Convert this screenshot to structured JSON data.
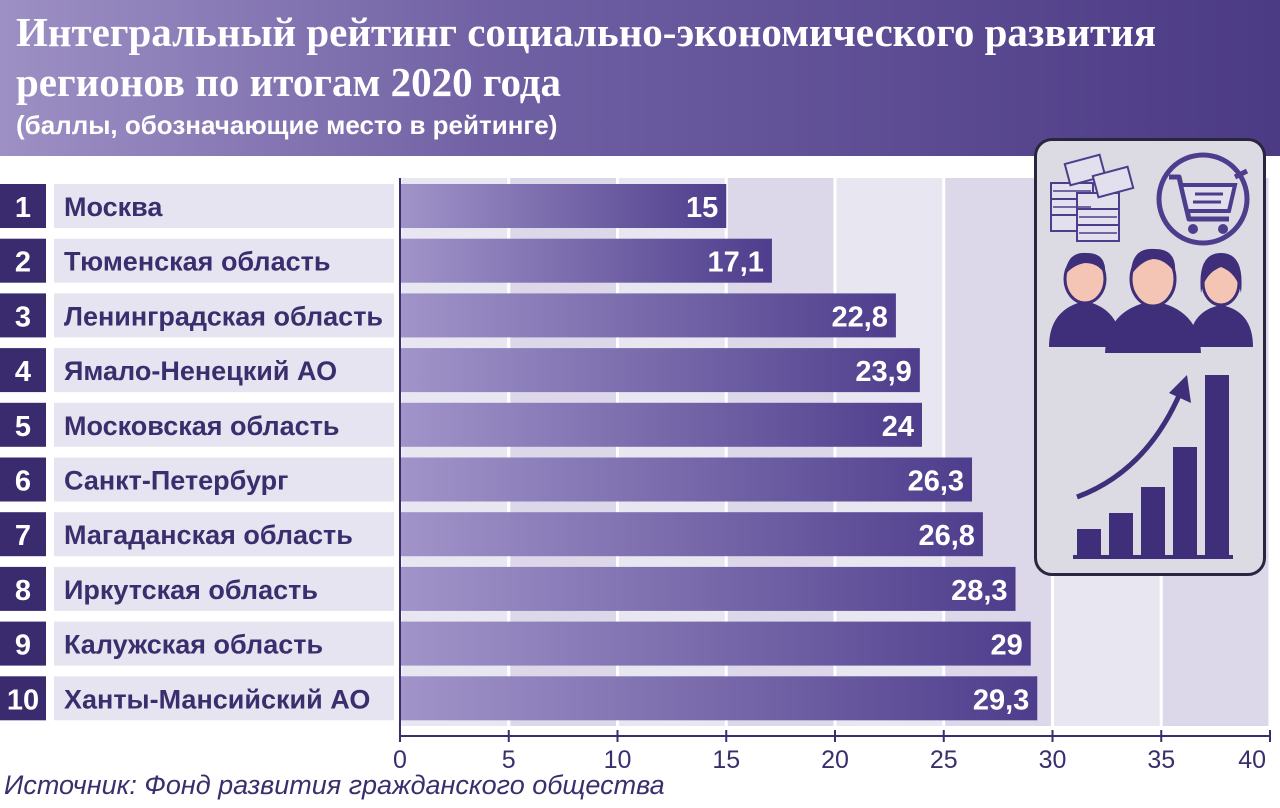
{
  "header": {
    "title_line1": "Интегральный рейтинг социально-экономического развития",
    "title_line2": "регионов по итогам 2020 года",
    "subtitle": "(баллы, обозначающие место в рейтинге)"
  },
  "source": "Источник: Фонд развития гражданского общества",
  "icons": [
    "money-stack-icon",
    "shopping-cart-icon",
    "people-icon",
    "growth-chart-icon"
  ],
  "colors": {
    "header_dark": "#4b3a84",
    "header_light": "#9d90c4",
    "bar_light": "#a194c9",
    "bar_dark": "#4e3d8c",
    "rank_box": "#3a2a6e",
    "label_bg": "#e6e4f0"
  },
  "chart_data": {
    "type": "bar",
    "orientation": "horizontal",
    "ranks": [
      "1",
      "2",
      "3",
      "4",
      "5",
      "6",
      "7",
      "8",
      "9",
      "10"
    ],
    "categories": [
      "Москва",
      "Тюменская область",
      "Ленинградская область",
      "Ямало-Ненецкий АО",
      "Московская область",
      "Санкт-Петербург",
      "Магаданская область",
      "Иркутская область",
      "Калужская область",
      "Ханты-Мансийский АО"
    ],
    "values": [
      15,
      17.1,
      22.8,
      23.9,
      24,
      26.3,
      26.8,
      28.3,
      29,
      29.3
    ],
    "value_labels": [
      "15",
      "17,1",
      "22,8",
      "23,9",
      "24",
      "26,3",
      "26,8",
      "28,3",
      "29",
      "29,3"
    ],
    "xlim": [
      0,
      40
    ],
    "xticks": [
      0,
      5,
      10,
      15,
      20,
      25,
      30,
      35,
      40
    ],
    "grid": true
  }
}
